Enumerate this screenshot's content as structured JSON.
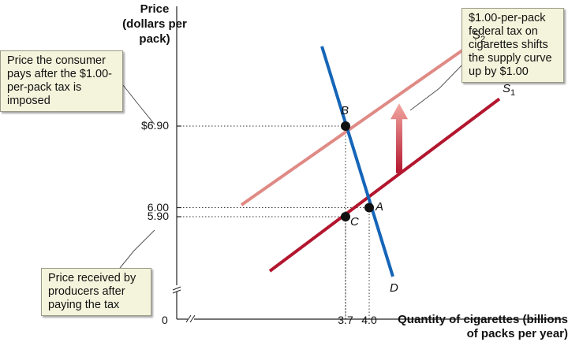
{
  "chart_data": {
    "type": "line",
    "ylabel": "Price (dollars per pack)",
    "xlabel": "Quantity of cigarettes (billions of packs per year)",
    "origin_label": "0",
    "y_ticks": [
      {
        "value": 6.9,
        "label": "$6.90"
      },
      {
        "value": 6.0,
        "label": "6.00"
      },
      {
        "value": 5.9,
        "label": "5.90"
      }
    ],
    "x_ticks": [
      {
        "value": 3.7,
        "label": "3.7"
      },
      {
        "value": 4.0,
        "label": "4.0"
      }
    ],
    "series": [
      {
        "name": "S",
        "subscript": "2",
        "color": "#e08a85",
        "points": [
          [
            2.38,
            6.03
          ],
          [
            5.27,
            7.79
          ]
        ]
      },
      {
        "name": "S",
        "subscript": "1",
        "color": "#b3162e",
        "points": [
          [
            2.74,
            5.3
          ],
          [
            5.65,
            7.2
          ]
        ]
      },
      {
        "name": "D",
        "subscript": "",
        "color": "#1565b8",
        "points": [
          [
            3.4,
            7.78
          ],
          [
            4.3,
            5.24
          ]
        ]
      }
    ],
    "points": [
      {
        "label": "B",
        "x": 3.7,
        "y": 6.9
      },
      {
        "label": "A",
        "x": 4.0,
        "y": 6.0
      },
      {
        "label": "C",
        "x": 3.7,
        "y": 5.9
      }
    ],
    "arrow": {
      "color": "#c0392b",
      "x": 4.38,
      "from": 6.38,
      "to": 7.15
    }
  },
  "annotations": {
    "tax_shift": "$1.00-per-pack federal tax on cigarettes shifts the supply curve up by $1.00",
    "consumer_price": "Price the consumer pays after the $1.00-per-pack tax is imposed",
    "producer_price": "Price received by producers after paying the tax"
  }
}
